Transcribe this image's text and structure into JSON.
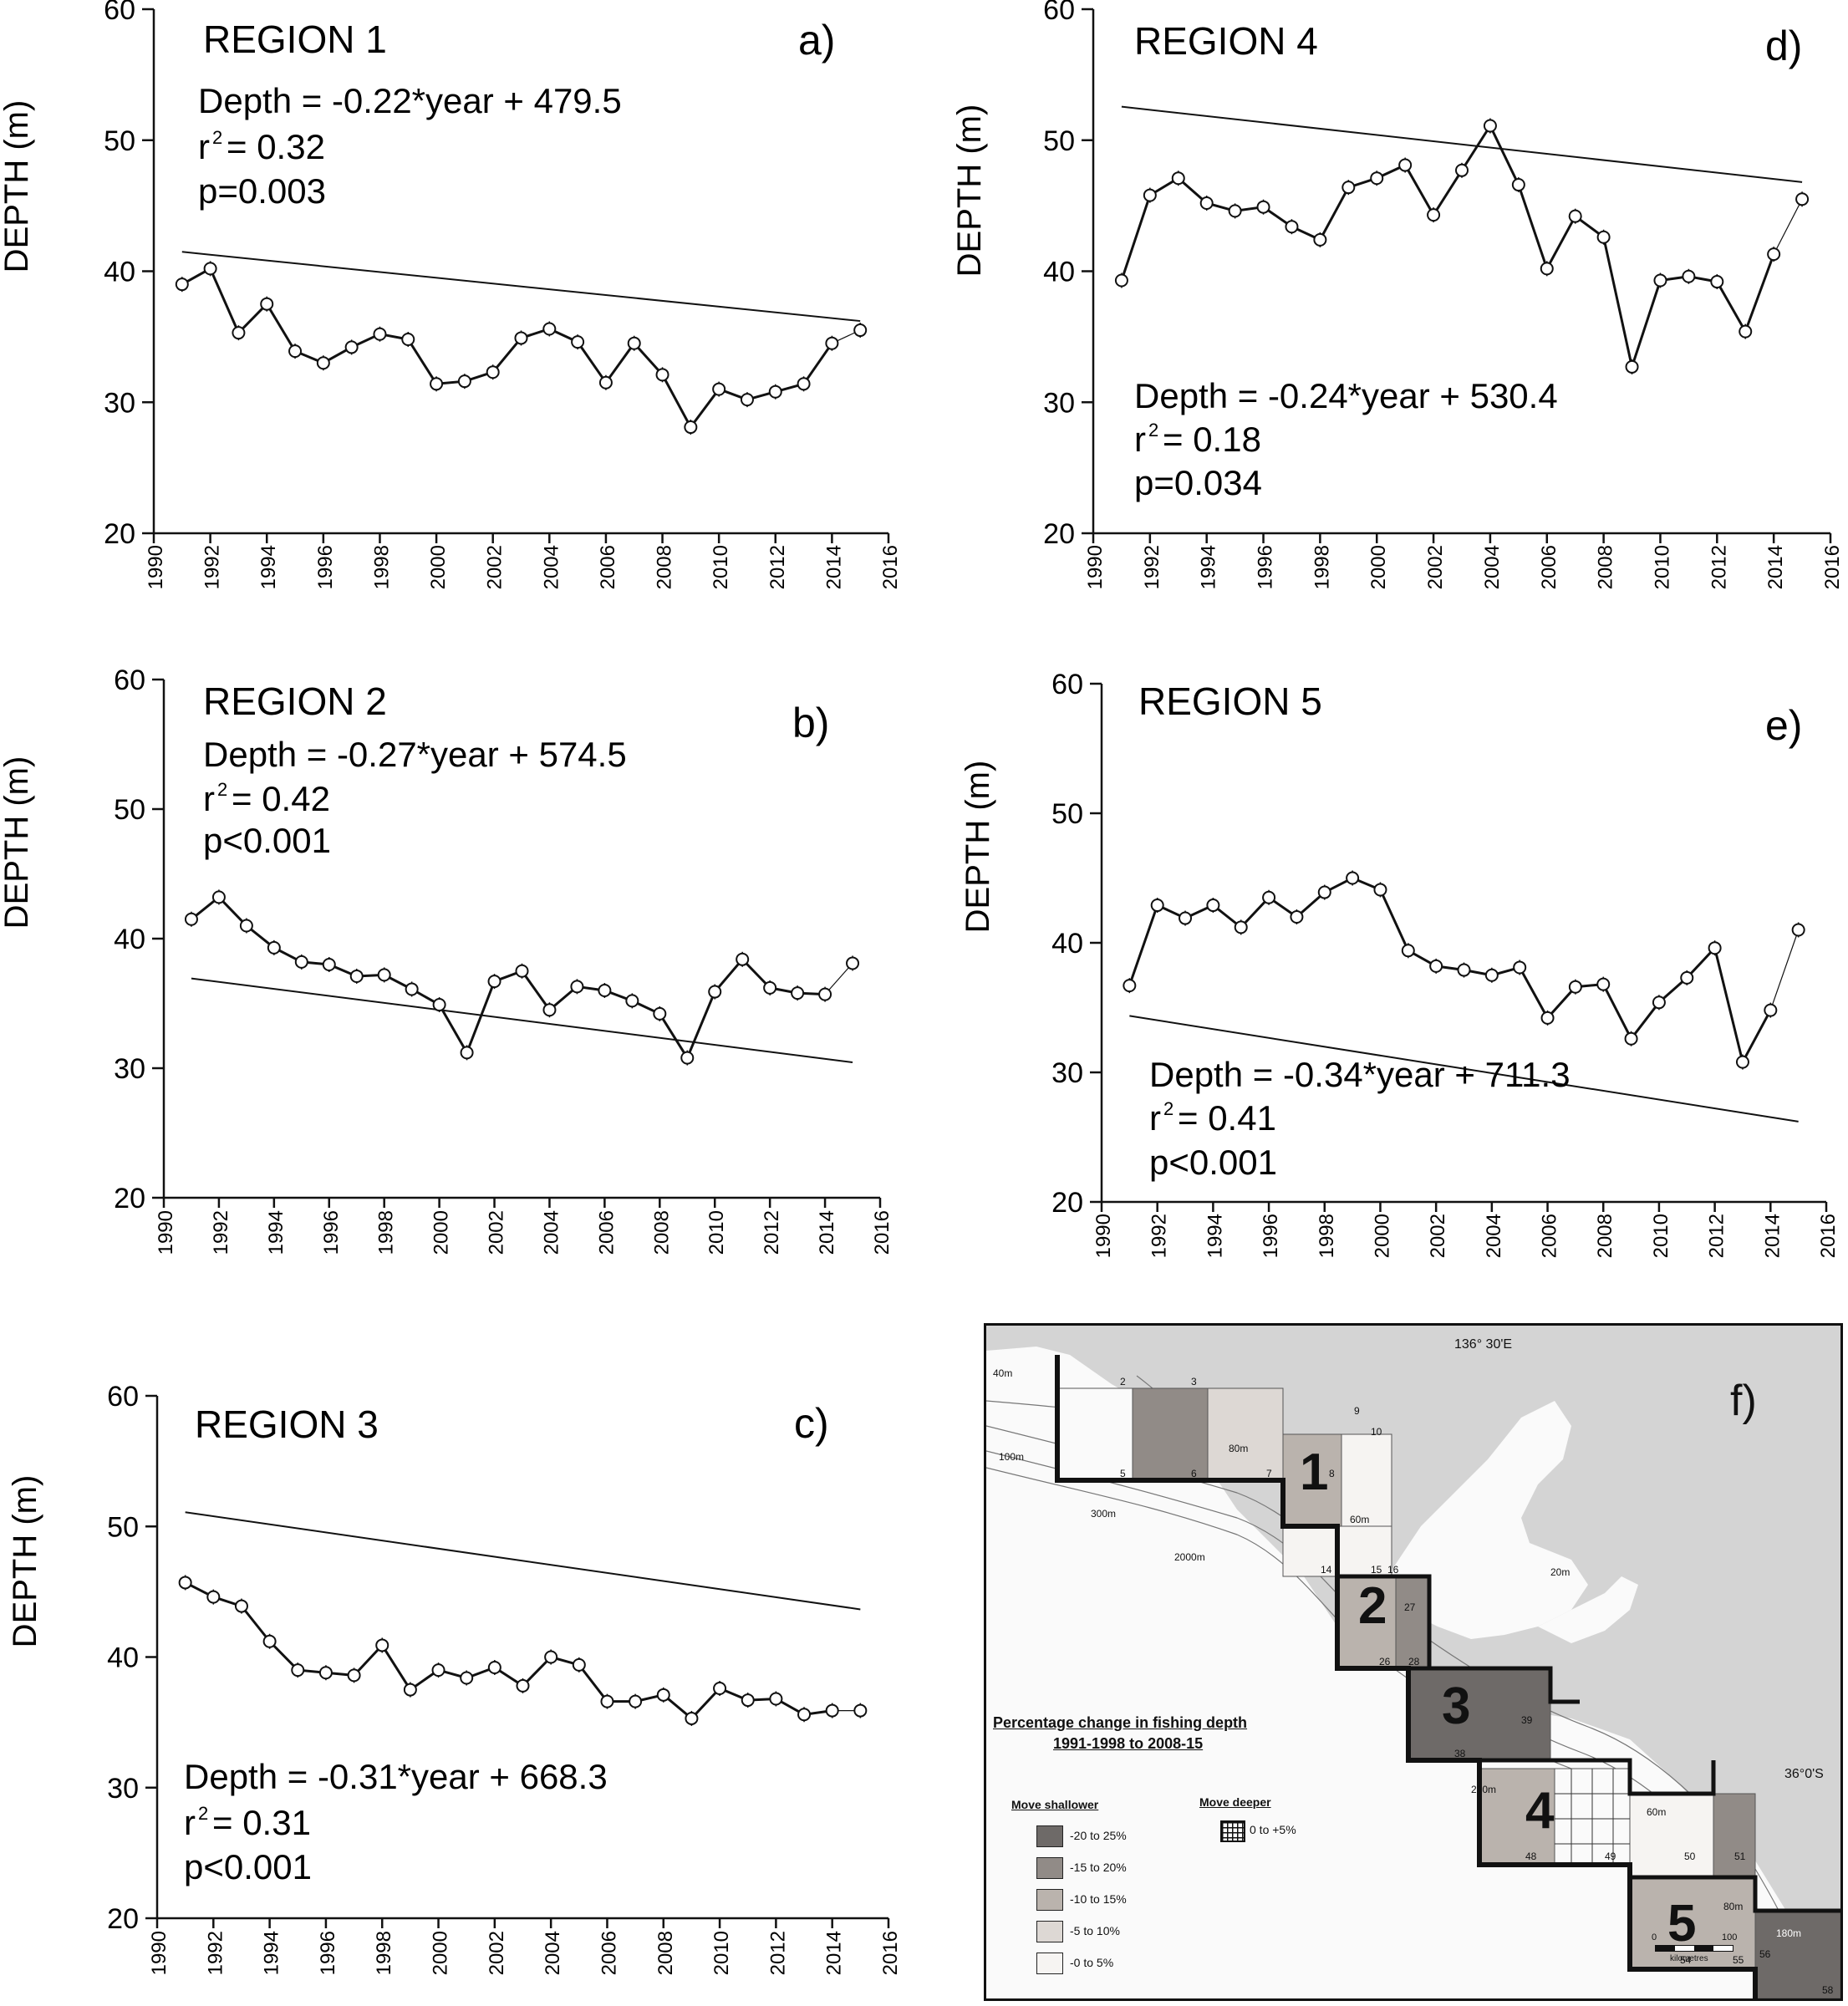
{
  "chart_data": [
    {
      "type": "line",
      "panel_letter": "a)",
      "title": "REGION 1",
      "equation": "Depth = -0.22*year + 479.5",
      "r2": "= 0.32",
      "p": "p=0.003",
      "ylabel": "DEPTH (m)",
      "xlabel": "",
      "xlim": [
        1990,
        2016
      ],
      "ylim": [
        20,
        60
      ],
      "xticks": [
        "1990",
        "1992",
        "1994",
        "1996",
        "1998",
        "2000",
        "2002",
        "2004",
        "2006",
        "2008",
        "2010",
        "2012",
        "2014",
        "2016"
      ],
      "yticks": [
        "20",
        "30",
        "40",
        "50",
        "60"
      ],
      "x": [
        1991,
        1992,
        1993,
        1994,
        1995,
        1996,
        1997,
        1998,
        1999,
        2000,
        2001,
        2002,
        2003,
        2004,
        2005,
        2006,
        2007,
        2008,
        2009,
        2010,
        2011,
        2012,
        2013,
        2014,
        2015
      ],
      "values": [
        39.0,
        40.2,
        35.3,
        37.5,
        33.9,
        33.0,
        34.2,
        35.2,
        34.8,
        31.4,
        31.6,
        32.3,
        34.9,
        35.6,
        34.6,
        31.5,
        34.5,
        32.1,
        28.1,
        31.0,
        30.2,
        30.8,
        31.4,
        34.5,
        35.5
      ],
      "trend": {
        "slope": -0.22,
        "intercept": 479.5
      },
      "grid": false
    },
    {
      "type": "line",
      "panel_letter": "b)",
      "title": "REGION 2",
      "equation": "Depth = -0.27*year + 574.5",
      "r2": "= 0.42",
      "p": "p<0.001",
      "ylabel": "DEPTH (m)",
      "xlabel": "",
      "xlim": [
        1990,
        2016
      ],
      "ylim": [
        20,
        60
      ],
      "xticks": [
        "1990",
        "1992",
        "1994",
        "1996",
        "1998",
        "2000",
        "2002",
        "2004",
        "2006",
        "2008",
        "2010",
        "2012",
        "2014",
        "2016"
      ],
      "yticks": [
        "20",
        "30",
        "40",
        "50",
        "60"
      ],
      "x": [
        1991,
        1992,
        1993,
        1994,
        1995,
        1996,
        1997,
        1998,
        1999,
        2000,
        2001,
        2002,
        2003,
        2004,
        2005,
        2006,
        2007,
        2008,
        2009,
        2010,
        2011,
        2012,
        2013,
        2014,
        2015
      ],
      "values": [
        41.5,
        43.2,
        41.0,
        39.3,
        38.2,
        38.0,
        37.1,
        37.2,
        36.1,
        34.9,
        31.2,
        36.7,
        37.5,
        34.5,
        36.3,
        36.0,
        35.2,
        34.2,
        30.8,
        35.9,
        38.4,
        36.2,
        35.8,
        35.7,
        38.1
      ],
      "trend": {
        "slope": -0.27,
        "intercept": 574.5
      },
      "grid": false
    },
    {
      "type": "line",
      "panel_letter": "c)",
      "title": "REGION 3",
      "equation": "Depth = -0.31*year + 668.3",
      "r2": "= 0.31",
      "p": "p<0.001",
      "ylabel": "DEPTH (m)",
      "xlabel": "",
      "xlim": [
        1990,
        2016
      ],
      "ylim": [
        20,
        60
      ],
      "xticks": [
        "1990",
        "1992",
        "1994",
        "1996",
        "1998",
        "2000",
        "2002",
        "2004",
        "2006",
        "2008",
        "2010",
        "2012",
        "2014",
        "2016"
      ],
      "yticks": [
        "20",
        "30",
        "40",
        "50",
        "60"
      ],
      "x": [
        1991,
        1992,
        1993,
        1994,
        1995,
        1996,
        1997,
        1998,
        1999,
        2000,
        2001,
        2002,
        2003,
        2004,
        2005,
        2006,
        2007,
        2008,
        2009,
        2010,
        2011,
        2012,
        2013,
        2014,
        2015
      ],
      "values": [
        45.7,
        44.6,
        43.9,
        41.2,
        39.0,
        38.8,
        38.6,
        40.9,
        37.5,
        39.0,
        38.4,
        39.2,
        37.8,
        40.0,
        39.4,
        36.6,
        36.6,
        37.1,
        35.3,
        37.6,
        36.7,
        36.8,
        35.6,
        35.9,
        35.9
      ],
      "trend": {
        "slope": -0.31,
        "intercept": 668.3
      },
      "grid": false
    },
    {
      "type": "line",
      "panel_letter": "d)",
      "title": "REGION 4",
      "equation": "Depth = -0.24*year + 530.4",
      "r2": "= 0.18",
      "p": "p=0.034",
      "ylabel": "DEPTH (m)",
      "xlabel": "",
      "xlim": [
        1990,
        2016
      ],
      "ylim": [
        20,
        60
      ],
      "xticks": [
        "1990",
        "1992",
        "1994",
        "1996",
        "1998",
        "2000",
        "2002",
        "2004",
        "2006",
        "2008",
        "2010",
        "2012",
        "2014",
        "2016"
      ],
      "yticks": [
        "20",
        "30",
        "40",
        "50",
        "60"
      ],
      "x": [
        1991,
        1992,
        1993,
        1994,
        1995,
        1996,
        1997,
        1998,
        1999,
        2000,
        2001,
        2002,
        2003,
        2004,
        2005,
        2006,
        2007,
        2008,
        2009,
        2010,
        2011,
        2012,
        2013,
        2014,
        2015
      ],
      "values": [
        39.3,
        45.8,
        47.1,
        45.2,
        44.6,
        44.9,
        43.4,
        42.4,
        46.4,
        47.1,
        48.1,
        44.3,
        47.7,
        51.1,
        46.6,
        40.2,
        44.2,
        42.6,
        32.7,
        39.3,
        39.6,
        39.2,
        35.4,
        41.3,
        45.5
      ],
      "trend": {
        "slope": -0.24,
        "intercept": 530.4
      },
      "grid": false
    },
    {
      "type": "line",
      "panel_letter": "e)",
      "title": "REGION 5",
      "equation": "Depth = -0.34*year + 711.3",
      "r2": "= 0.41",
      "p": "p<0.001",
      "ylabel": "DEPTH (m)",
      "xlabel": "",
      "xlim": [
        1990,
        2016
      ],
      "ylim": [
        20,
        60
      ],
      "xticks": [
        "1990",
        "1992",
        "1994",
        "1996",
        "1998",
        "2000",
        "2002",
        "2004",
        "2006",
        "2008",
        "2010",
        "2012",
        "2014",
        "2016"
      ],
      "yticks": [
        "20",
        "30",
        "40",
        "50",
        "60"
      ],
      "x": [
        1991,
        1992,
        1993,
        1994,
        1995,
        1996,
        1997,
        1998,
        1999,
        2000,
        2001,
        2002,
        2003,
        2004,
        2005,
        2006,
        2007,
        2008,
        2009,
        2010,
        2011,
        2012,
        2013,
        2014,
        2015
      ],
      "values": [
        36.7,
        42.9,
        41.9,
        42.9,
        41.2,
        43.5,
        42.0,
        43.9,
        45.0,
        44.1,
        39.4,
        38.2,
        37.9,
        37.5,
        38.1,
        34.2,
        36.6,
        36.8,
        32.6,
        35.4,
        37.3,
        39.6,
        30.8,
        34.8,
        41.0
      ],
      "trend": {
        "slope": -0.34,
        "intercept": 711.3
      },
      "grid": false
    }
  ],
  "map": {
    "panel_letter": "f)",
    "longitude_label": "136° 30'E",
    "latitude_label": "36°0'S",
    "legend_title_line1": "Percentage change in fishing depth",
    "legend_title_line2": "1991-1998 to 2008-15",
    "move_shallower_label": "Move shallower",
    "move_deeper_label": "Move deeper",
    "legend_items": [
      {
        "label": "-20 to 25%",
        "color": "#6e6a68"
      },
      {
        "label": "-15 to 20%",
        "color": "#918b87"
      },
      {
        "label": "-10 to 15%",
        "color": "#bab3ad"
      },
      {
        "label": "-5 to 10%",
        "color": "#ddd8d4"
      },
      {
        "label": "-0 to 5%",
        "color": "#f6f4f2"
      }
    ],
    "deeper_item": {
      "label": "0 to +5%"
    },
    "region_numbers": [
      "1",
      "2",
      "3",
      "4",
      "5"
    ],
    "cell_numbers": [
      "2",
      "3",
      "5",
      "6",
      "7",
      "8",
      "9",
      "10",
      "14",
      "15",
      "16",
      "26",
      "27",
      "28",
      "38",
      "39",
      "48",
      "49",
      "50",
      "51",
      "54",
      "55",
      "56",
      "58"
    ],
    "depth_contours": [
      "40m",
      "100m",
      "80m",
      "60m",
      "300m",
      "2000m",
      "20m",
      "200m",
      "60m",
      "80m",
      "180m"
    ],
    "scale_start": "0",
    "scale_end": "100",
    "scale_unit": "kilometres",
    "land_color": "#d4d4d4",
    "sea_color": "#fafafa"
  }
}
